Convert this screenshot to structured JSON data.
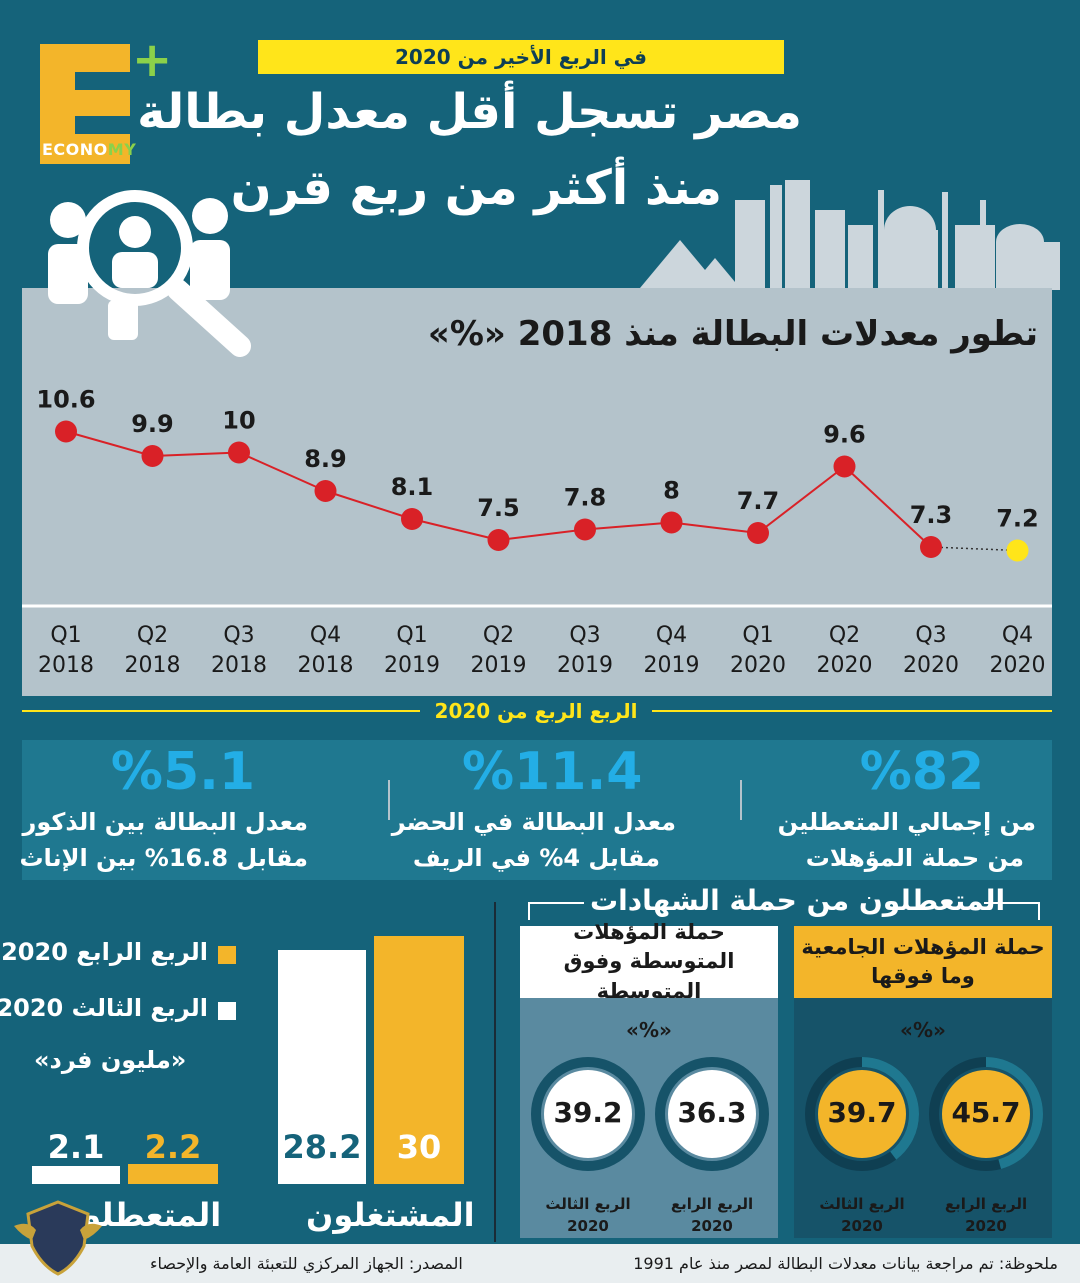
{
  "header": {
    "logo_text_main": "ECONO",
    "logo_text_accent": "MY",
    "top_badge": "في الربع الأخير من 2020",
    "title_line1": "مصر تسجل أقل معدل بطالة",
    "title_line2": "منذ أكثر من ربع قرن"
  },
  "chart_data": {
    "type": "line",
    "title": "تطور معدلات البطالة منذ 2018  «%»",
    "categories": [
      [
        "Q1",
        "2018"
      ],
      [
        "Q2",
        "2018"
      ],
      [
        "Q3",
        "2018"
      ],
      [
        "Q4",
        "2018"
      ],
      [
        "Q1",
        "2019"
      ],
      [
        "Q2",
        "2019"
      ],
      [
        "Q3",
        "2019"
      ],
      [
        "Q4",
        "2019"
      ],
      [
        "Q1",
        "2020"
      ],
      [
        "Q2",
        "2020"
      ],
      [
        "Q3",
        "2020"
      ],
      [
        "Q4",
        "2020"
      ]
    ],
    "values": [
      10.6,
      9.9,
      10,
      8.9,
      8.1,
      7.5,
      7.8,
      8,
      7.7,
      9.6,
      7.3,
      7.2
    ],
    "value_labels": [
      "10.6",
      "9.9",
      "10",
      "8.9",
      "8.1",
      "7.5",
      "7.8",
      "8",
      "7.7",
      "9.6",
      "7.3",
      "7.2"
    ],
    "ylim": [
      6.5,
      11.5
    ],
    "line_color": "#d92127",
    "point_color": "#d92127",
    "highlight_point_color": "#ffe51a",
    "highlight_index": 11
  },
  "section_label": "الربع الربع من 2020",
  "stats": [
    {
      "value": "%82",
      "line1": "من إجمالي المتعطلين",
      "line2": "من حملة المؤهلات"
    },
    {
      "value": "%11.4",
      "line1": "معدل البطالة في الحضر",
      "line2": "مقابل 4% في الريف"
    },
    {
      "value": "%5.1",
      "line1": "معدل البطالة بين الذكور",
      "line2": "مقابل 16.8% بين الإناث"
    }
  ],
  "certificates": {
    "title": "المتعطلون من حملة الشهادات",
    "cards": [
      {
        "head": "حملة المؤهلات الجامعية وما فوقها",
        "unit": "«%»",
        "head_color": "#f3b52a",
        "body_color": "#165369",
        "fill_color": "#f3b52a",
        "items": [
          {
            "value": "45.7",
            "cap1": "الربع الرابع",
            "cap2": "2020"
          },
          {
            "value": "39.7",
            "cap1": "الربع الثالث",
            "cap2": "2020"
          }
        ]
      },
      {
        "head": "حملة المؤهلات المتوسطة وفوق المتوسطة",
        "unit": "«%»",
        "head_color": "#ffffff",
        "body_color": "#5a8aa0",
        "fill_color": "#ffffff",
        "items": [
          {
            "value": "36.3",
            "cap1": "الربع الرابع",
            "cap2": "2020"
          },
          {
            "value": "39.2",
            "cap1": "الربع الثالث",
            "cap2": "2020"
          }
        ]
      }
    ]
  },
  "bars": {
    "legend_q4": "الربع الرابع 2020",
    "legend_q3": "الربع الثالث 2020",
    "unit": "«مليون فرد»",
    "unemployed_label": "المتعطلون",
    "employed_label": "المشتغلون",
    "q4_color": "#f3b52a",
    "q3_color": "#ffffff",
    "unemployed_q4": "2.2",
    "unemployed_q3": "2.1",
    "employed_q4": "30",
    "employed_q3": "28.2"
  },
  "footer": {
    "note": "ملحوظة: تم مراجعة بيانات معدلات البطالة لمصر منذ عام 1991",
    "source": "المصدر: الجهاز المركزي للتعبئة العامة والإحصاء"
  }
}
